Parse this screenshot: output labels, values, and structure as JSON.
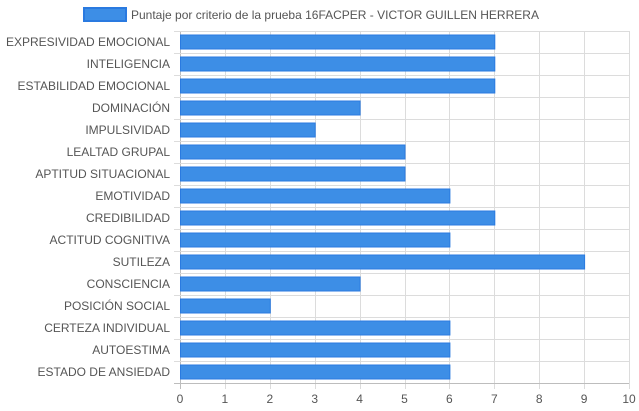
{
  "chart_data": {
    "type": "bar",
    "orientation": "horizontal",
    "categories": [
      "EXPRESIVIDAD EMOCIONAL",
      "INTELIGENCIA",
      "ESTABILIDAD EMOCIONAL",
      "DOMINACIÓN",
      "IMPULSIVIDAD",
      "LEALTAD GRUPAL",
      "APTITUD SITUACIONAL",
      "EMOTIVIDAD",
      "CREDIBILIDAD",
      "ACTITUD COGNITIVA",
      "SUTILEZA",
      "CONSCIENCIA",
      "POSICIÓN SOCIAL",
      "CERTEZA INDIVIDUAL",
      "AUTOESTIMA",
      "ESTADO DE ANSIEDAD"
    ],
    "series": [
      {
        "name": "Puntaje por criterio de la prueba 16FACPER - VICTOR GUILLEN HERRERA",
        "values": [
          7,
          7,
          7,
          4,
          3,
          5,
          5,
          6,
          7,
          6,
          9,
          4,
          2,
          6,
          6,
          6
        ],
        "color": "#3d8ee6",
        "border_color": "#2a7ae0"
      }
    ],
    "xlim": [
      0,
      10
    ],
    "x_ticks": [
      "0",
      "1",
      "2",
      "3",
      "4",
      "5",
      "6",
      "7",
      "8",
      "9",
      "10"
    ],
    "grid": true,
    "legend": "top-center"
  }
}
